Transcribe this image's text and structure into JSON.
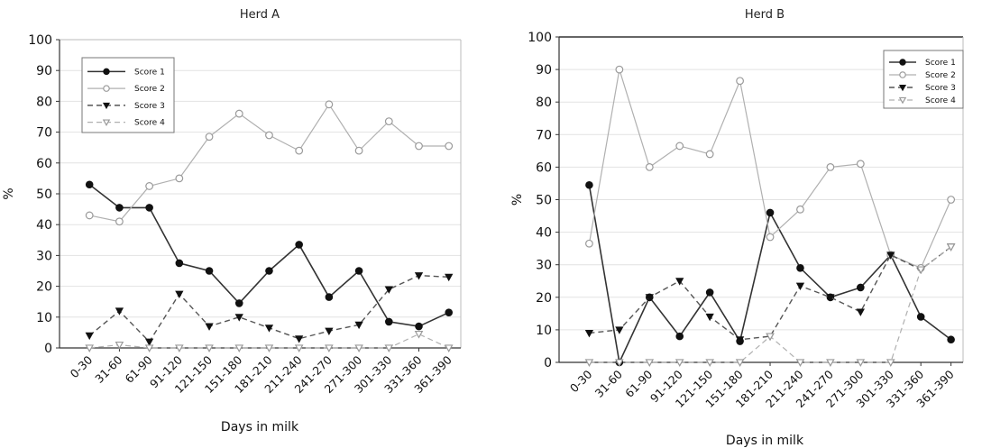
{
  "chart_data": [
    {
      "type": "line",
      "title": "Herd A",
      "xlabel": "Days in milk",
      "ylabel": "%",
      "ylim": [
        0,
        100
      ],
      "yticks": [
        0,
        10,
        20,
        30,
        40,
        50,
        60,
        70,
        80,
        90,
        100
      ],
      "grid": true,
      "legend_position": "top-left",
      "categories": [
        "0-30",
        "31-60",
        "61-90",
        "91-120",
        "121-150",
        "151-180",
        "181-210",
        "211-240",
        "241-270",
        "271-300",
        "301-330",
        "331-360",
        "361-390"
      ],
      "series": [
        {
          "name": "Score 1",
          "marker": "filled-circle",
          "line": "solid",
          "color": "#333333",
          "values": [
            53,
            45.5,
            45.5,
            27.5,
            25,
            14.5,
            25,
            33.5,
            16.5,
            25,
            8.5,
            7,
            11.5
          ]
        },
        {
          "name": "Score 2",
          "marker": "open-circle",
          "line": "solid-light",
          "color": "#b0b0b0",
          "values": [
            43,
            41,
            52.5,
            55,
            68.5,
            76,
            69,
            64,
            79,
            64,
            73.5,
            65.5,
            65.5
          ]
        },
        {
          "name": "Score 3",
          "marker": "filled-triangle-down",
          "line": "dashed",
          "color": "#555555",
          "values": [
            4,
            12,
            2,
            17.5,
            7,
            10,
            6.5,
            3,
            5.5,
            7.5,
            19,
            23.5,
            23
          ]
        },
        {
          "name": "Score 4",
          "marker": "open-triangle-down",
          "line": "dashed-light",
          "color": "#b0b0b0",
          "values": [
            0,
            1,
            0,
            0,
            0,
            0,
            0,
            0,
            0,
            0,
            0,
            4.5,
            0
          ]
        }
      ]
    },
    {
      "type": "line",
      "title": "Herd B",
      "xlabel": "Days in milk",
      "ylabel": "%",
      "ylim": [
        0,
        100
      ],
      "yticks": [
        0,
        10,
        20,
        30,
        40,
        50,
        60,
        70,
        80,
        90,
        100
      ],
      "grid": true,
      "legend_position": "top-right",
      "categories": [
        "0-30",
        "31-60",
        "61-90",
        "91-120",
        "121-150",
        "151-180",
        "181-210",
        "211-240",
        "241-270",
        "271-300",
        "301-330",
        "331-360",
        "361-390"
      ],
      "series": [
        {
          "name": "Score 1",
          "marker": "filled-circle",
          "line": "solid",
          "color": "#333333",
          "values": [
            54.5,
            0,
            20,
            8,
            21.5,
            6.5,
            46,
            29,
            20,
            23,
            33,
            14,
            7
          ]
        },
        {
          "name": "Score 2",
          "marker": "open-circle",
          "line": "solid-light",
          "color": "#b0b0b0",
          "values": [
            36.5,
            90,
            60,
            66.5,
            64,
            86.5,
            38.5,
            47,
            60,
            61,
            33,
            29,
            50
          ]
        },
        {
          "name": "Score 3",
          "marker": "filled-triangle-down",
          "line": "dashed",
          "color": "#555555",
          "values": [
            9,
            10,
            20,
            25,
            14,
            7,
            8,
            23.5,
            20,
            15.5,
            33,
            28.5,
            35.5
          ]
        },
        {
          "name": "Score 4",
          "marker": "open-triangle-down",
          "line": "dashed-light",
          "color": "#b0b0b0",
          "values": [
            0,
            0,
            0,
            0,
            0,
            0,
            8,
            0,
            0,
            0,
            0,
            28.5,
            35.5
          ]
        }
      ]
    }
  ]
}
